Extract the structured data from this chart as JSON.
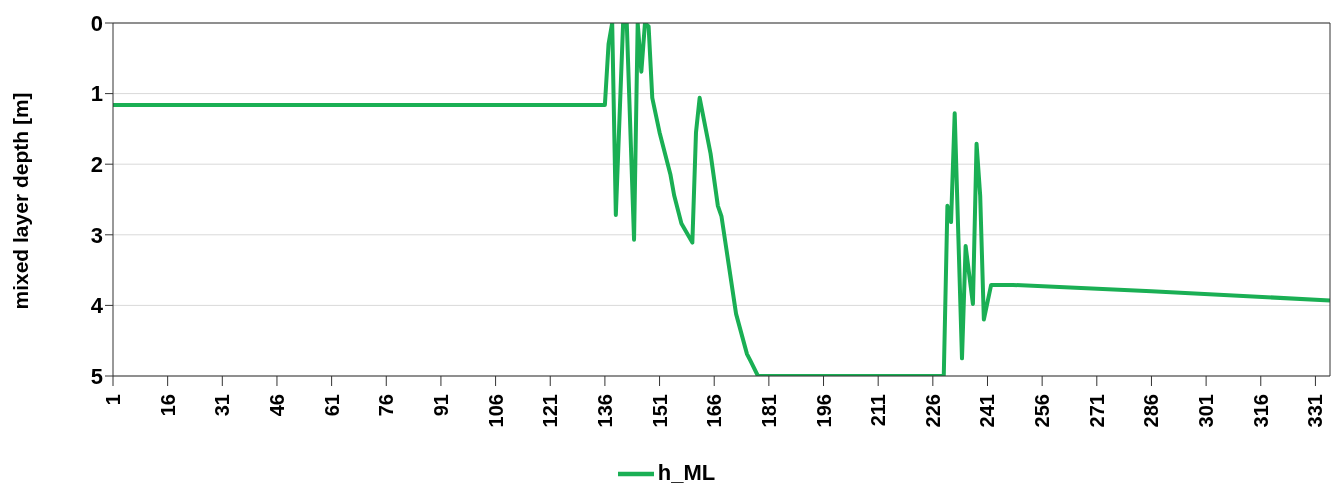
{
  "chart_data": {
    "type": "line",
    "ylabel": "mixed layer depth [m]",
    "x": [
      1,
      136,
      137,
      138,
      139,
      141,
      142,
      144,
      145,
      146,
      147,
      148,
      149,
      151,
      154,
      155,
      157,
      160,
      161,
      162,
      165,
      167,
      168,
      170,
      172,
      175,
      176,
      178,
      229,
      230,
      231,
      232,
      234,
      235,
      237,
      238,
      239,
      240,
      242,
      248,
      286,
      335
    ],
    "series": [
      {
        "name": "h_ML",
        "color": "#1aaf54",
        "values": [
          1.16,
          1.16,
          0.3,
          0,
          2.72,
          0,
          0,
          3.07,
          0,
          0.69,
          0,
          0.05,
          1.06,
          1.55,
          2.15,
          2.44,
          2.84,
          3.11,
          1.55,
          1.06,
          1.85,
          2.59,
          2.74,
          3.43,
          4.12,
          4.69,
          4.79,
          5,
          5,
          2.59,
          2.82,
          1.28,
          4.75,
          3.16,
          3.98,
          1.71,
          2.45,
          4.2,
          3.71,
          3.71,
          3.8,
          3.93
        ]
      }
    ],
    "xlim": [
      1,
      335
    ],
    "xticks": [
      1,
      16,
      31,
      46,
      61,
      76,
      91,
      106,
      121,
      136,
      151,
      166,
      181,
      196,
      211,
      226,
      241,
      256,
      271,
      286,
      301,
      316,
      331
    ],
    "ylim": [
      5,
      0
    ],
    "yticks": [
      0,
      1,
      2,
      3,
      4,
      5
    ],
    "grid": "y",
    "legend": "bottom",
    "marker": "none",
    "line_style": "solid"
  }
}
